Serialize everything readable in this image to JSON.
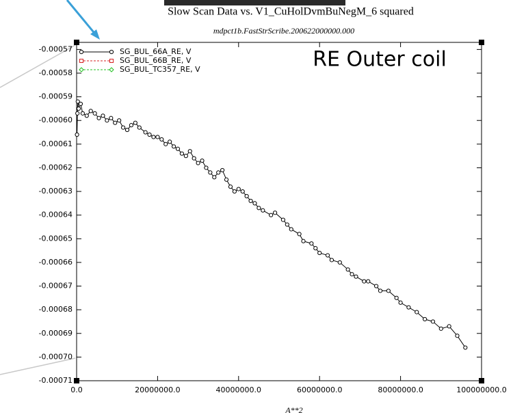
{
  "chart_data": {
    "type": "line",
    "title": "Slow Scan Data vs. V1_CuHolDvmBuNegM_6 squared",
    "subtitle": "mdpct1b.FastStrScribe.200622000000.000",
    "x_label": "A**2",
    "annotation": "RE Outer coil",
    "xlim": [
      0,
      100000000
    ],
    "ylim": [
      -0.00071,
      -0.000567
    ],
    "xticks": [
      {
        "value": 0,
        "label": "0.0"
      },
      {
        "value": 20000000,
        "label": "20000000.0"
      },
      {
        "value": 40000000,
        "label": "40000000.0"
      },
      {
        "value": 60000000,
        "label": "60000000.0"
      },
      {
        "value": 80000000,
        "label": "80000000.0"
      },
      {
        "value": 100000000,
        "label": "100000000.0"
      }
    ],
    "yticks": [
      -0.00057,
      -0.00058,
      -0.00059,
      {
        "value": -0.0006,
        "label": "-0.00060"
      },
      -0.00061,
      -0.00062,
      -0.00063,
      -0.00064,
      -0.00065,
      -0.00066,
      -0.00067,
      -0.00068,
      -0.00069,
      {
        "value": -0.0007,
        "label": "-0.00070"
      },
      -0.00071
    ],
    "legend": "upper left",
    "series": [
      {
        "name": "SG_BUL_66A_RE, V",
        "color": "#000000",
        "marker": "circle",
        "dash": false,
        "x": [
          100000,
          200000,
          300000,
          500000,
          1000000,
          1500000,
          2500000,
          3500000,
          4500000,
          5500000,
          6500000,
          7500000,
          8500000,
          9500000,
          10500000,
          11500000,
          12500000,
          13500000,
          14500000,
          15500000,
          17000000,
          18000000,
          19000000,
          20000000,
          21000000,
          22000000,
          23000000,
          24000000,
          25000000,
          26000000,
          27000000,
          28000000,
          29000000,
          30000000,
          31000000,
          32000000,
          33000000,
          34000000,
          35000000,
          36000000,
          37000000,
          38000000,
          39000000,
          40000000,
          41000000,
          42000000,
          43000000,
          44000000,
          45000000,
          46000000,
          48000000,
          49000000,
          51000000,
          52000000,
          53000000,
          55000000,
          56000000,
          58000000,
          59000000,
          60000000,
          62000000,
          63000000,
          65000000,
          67000000,
          68000000,
          69000000,
          71000000,
          72000000,
          74000000,
          75000000,
          77000000,
          79000000,
          80000000,
          82000000,
          84000000,
          86000000,
          88000000,
          90000000,
          92000000,
          94000000,
          96000000
        ],
        "values": [
          -0.000606,
          -0.000597,
          -0.000592,
          -0.000595,
          -0.000593,
          -0.000597,
          -0.000598,
          -0.000596,
          -0.000597,
          -0.000599,
          -0.000598,
          -0.0006,
          -0.000599,
          -0.000601,
          -0.0006,
          -0.000603,
          -0.000604,
          -0.000602,
          -0.000601,
          -0.000603,
          -0.000605,
          -0.000606,
          -0.000607,
          -0.000607,
          -0.000608,
          -0.00061,
          -0.000609,
          -0.000611,
          -0.000612,
          -0.000614,
          -0.000615,
          -0.000613,
          -0.000616,
          -0.000618,
          -0.000617,
          -0.00062,
          -0.000622,
          -0.000624,
          -0.000622,
          -0.000621,
          -0.000625,
          -0.000628,
          -0.00063,
          -0.000629,
          -0.00063,
          -0.000632,
          -0.000634,
          -0.000635,
          -0.000637,
          -0.000638,
          -0.00064,
          -0.000639,
          -0.000642,
          -0.000644,
          -0.000646,
          -0.000648,
          -0.000651,
          -0.000652,
          -0.000654,
          -0.000656,
          -0.000657,
          -0.000659,
          -0.00066,
          -0.000663,
          -0.000665,
          -0.000666,
          -0.000668,
          -0.000668,
          -0.00067,
          -0.000672,
          -0.000672,
          -0.000675,
          -0.000677,
          -0.000679,
          -0.000681,
          -0.000684,
          -0.000685,
          -0.000688,
          -0.000687,
          -0.000691,
          -0.000696
        ]
      },
      {
        "name": "SG_BUL_66B_RE, V",
        "color": "#d62020",
        "marker": "square",
        "dash": true,
        "x": [],
        "values": []
      },
      {
        "name": "SG_BUL_TC357_RE, V",
        "color": "#20c020",
        "marker": "diamond",
        "dash": true,
        "x": [],
        "values": []
      }
    ]
  }
}
